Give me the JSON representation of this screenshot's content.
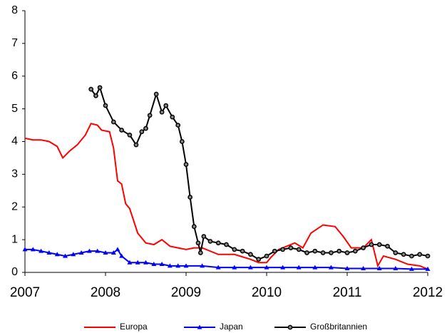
{
  "chart_data": {
    "type": "line",
    "xlim": [
      2007,
      2012
    ],
    "xticks": [
      2007,
      2008,
      2009,
      2010,
      2011,
      2012
    ],
    "ylim": [
      0,
      8
    ],
    "yticks": [
      0,
      1,
      2,
      3,
      4,
      5,
      6,
      7,
      8
    ],
    "series": [
      {
        "name": "Europa",
        "color": "#ff0000",
        "marker": "none",
        "x": [
          2007.0,
          2007.1,
          2007.2,
          2007.3,
          2007.4,
          2007.47,
          2007.55,
          2007.65,
          2007.75,
          2007.82,
          2007.9,
          2007.95,
          2008.05,
          2008.1,
          2008.15,
          2008.2,
          2008.25,
          2008.3,
          2008.4,
          2008.5,
          2008.6,
          2008.7,
          2008.8,
          2008.9,
          2009.0,
          2009.1,
          2009.2,
          2009.4,
          2009.6,
          2009.8,
          2009.9,
          2010.0,
          2010.05,
          2010.15,
          2010.25,
          2010.35,
          2010.45,
          2010.55,
          2010.7,
          2010.85,
          2010.95,
          2011.05,
          2011.2,
          2011.3,
          2011.38,
          2011.45,
          2011.6,
          2011.75,
          2011.9,
          2012.0
        ],
        "values": [
          4.1,
          4.05,
          4.05,
          4.0,
          3.85,
          3.5,
          3.7,
          3.9,
          4.2,
          4.55,
          4.5,
          4.35,
          4.3,
          3.8,
          2.8,
          2.7,
          2.1,
          1.95,
          1.2,
          0.9,
          0.85,
          1.0,
          0.8,
          0.75,
          0.7,
          0.75,
          0.75,
          0.55,
          0.55,
          0.4,
          0.3,
          0.3,
          0.45,
          0.7,
          0.8,
          0.9,
          0.75,
          1.2,
          1.45,
          1.4,
          1.1,
          0.75,
          0.75,
          1.0,
          0.2,
          0.5,
          0.4,
          0.25,
          0.2,
          0.1
        ]
      },
      {
        "name": "Japan",
        "color": "#0000ff",
        "marker": "triangle",
        "x": [
          2007.0,
          2007.1,
          2007.2,
          2007.3,
          2007.4,
          2007.5,
          2007.6,
          2007.7,
          2007.8,
          2007.9,
          2008.0,
          2008.1,
          2008.15,
          2008.2,
          2008.3,
          2008.4,
          2008.5,
          2008.6,
          2008.7,
          2008.8,
          2008.9,
          2009.0,
          2009.2,
          2009.4,
          2009.6,
          2009.8,
          2010.0,
          2010.2,
          2010.4,
          2010.6,
          2010.8,
          2011.0,
          2011.2,
          2011.4,
          2011.6,
          2011.8,
          2012.0
        ],
        "values": [
          0.7,
          0.7,
          0.65,
          0.6,
          0.55,
          0.5,
          0.55,
          0.6,
          0.65,
          0.65,
          0.6,
          0.6,
          0.7,
          0.5,
          0.3,
          0.3,
          0.3,
          0.25,
          0.25,
          0.2,
          0.2,
          0.2,
          0.2,
          0.15,
          0.15,
          0.15,
          0.15,
          0.15,
          0.15,
          0.15,
          0.15,
          0.12,
          0.12,
          0.12,
          0.12,
          0.1,
          0.1
        ]
      },
      {
        "name": "Großbritannien",
        "color": "#000000",
        "marker": "circle",
        "x": [
          2007.82,
          2007.88,
          2007.93,
          2008.0,
          2008.1,
          2008.2,
          2008.3,
          2008.38,
          2008.45,
          2008.5,
          2008.55,
          2008.63,
          2008.7,
          2008.75,
          2008.83,
          2008.9,
          2008.95,
          2009.0,
          2009.05,
          2009.1,
          2009.15,
          2009.18,
          2009.22,
          2009.3,
          2009.4,
          2009.5,
          2009.6,
          2009.7,
          2009.8,
          2009.9,
          2010.0,
          2010.1,
          2010.2,
          2010.3,
          2010.4,
          2010.5,
          2010.6,
          2010.7,
          2010.8,
          2010.9,
          2011.0,
          2011.1,
          2011.2,
          2011.3,
          2011.4,
          2011.5,
          2011.6,
          2011.7,
          2011.8,
          2011.9,
          2012.0
        ],
        "values": [
          5.6,
          5.4,
          5.65,
          5.1,
          4.6,
          4.35,
          4.2,
          3.9,
          4.3,
          4.4,
          4.8,
          5.45,
          4.9,
          5.1,
          4.75,
          4.5,
          4.0,
          3.3,
          2.3,
          1.4,
          0.9,
          0.6,
          1.1,
          0.95,
          0.9,
          0.85,
          0.7,
          0.65,
          0.55,
          0.4,
          0.5,
          0.65,
          0.7,
          0.75,
          0.7,
          0.6,
          0.65,
          0.6,
          0.6,
          0.65,
          0.6,
          0.65,
          0.75,
          0.85,
          0.85,
          0.8,
          0.6,
          0.55,
          0.5,
          0.55,
          0.5
        ]
      }
    ]
  }
}
